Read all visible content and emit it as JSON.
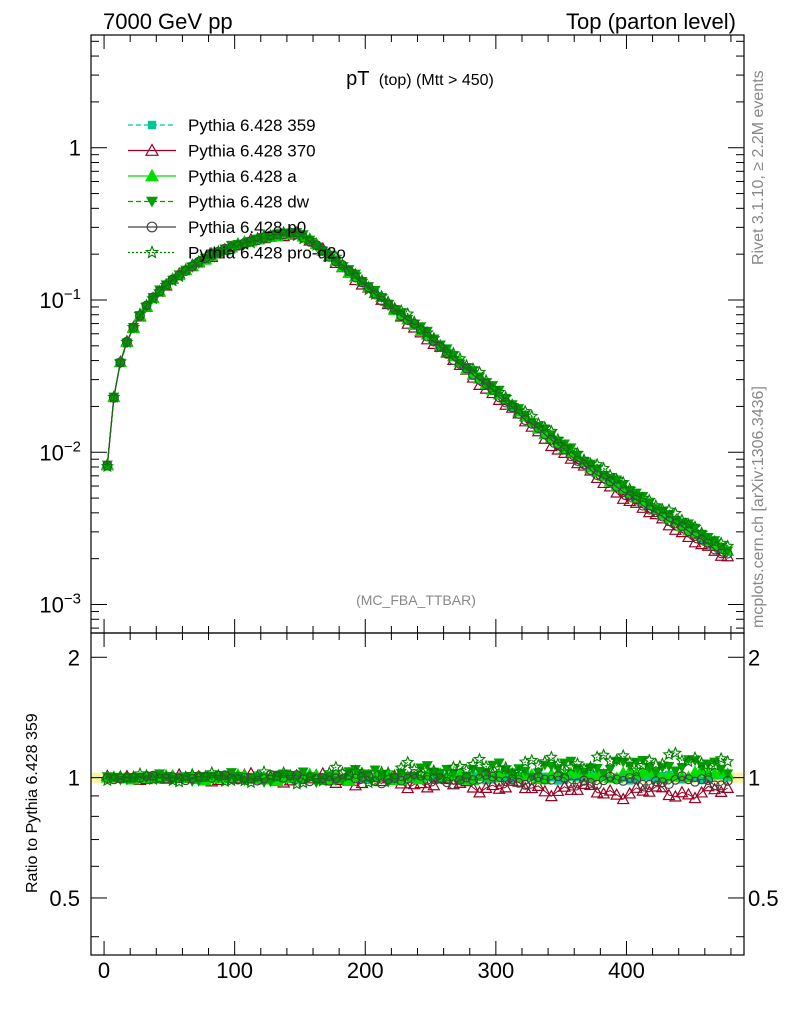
{
  "header": {
    "left": "7000 GeV pp",
    "right": "Top (parton level)"
  },
  "side_labels": {
    "rivet": "Rivet 3.1.10, ≥ 2.2M events",
    "mcplots": "mcplots.cern.ch [arXiv:1306.3436]"
  },
  "chart_data": {
    "type": "line",
    "title": "pT (top) (Mtt > 450)",
    "title_main": "pT",
    "title_sub": "(top) (Mtt > 450)",
    "analysis_tag": "(MC_FBA_TTBAR)",
    "xlim": [
      -10,
      490
    ],
    "xticks": [
      0,
      100,
      200,
      300,
      400
    ],
    "xtick_labels": [
      "0",
      "100",
      "200",
      "300",
      "400"
    ],
    "main_panel": {
      "yscale": "log",
      "ylim": [
        0.00065,
        5.5
      ],
      "yticks": [
        0.001,
        0.01,
        0.1,
        1
      ],
      "ytick_labels": [
        "10−3",
        "10−2",
        "10−1",
        "1"
      ],
      "ytick_base": "10",
      "ytick_exps": [
        "−3",
        "−2",
        "−1",
        ""
      ],
      "peak": {
        "x": 147,
        "y": 0.275
      },
      "rise_points": [
        [
          2.5,
          0.0082
        ],
        [
          7.5,
          0.023
        ],
        [
          12.5,
          0.039
        ],
        [
          17.5,
          0.053
        ],
        [
          22.5,
          0.066
        ],
        [
          27.5,
          0.079
        ],
        [
          32.5,
          0.091
        ],
        [
          37.5,
          0.103
        ],
        [
          42.5,
          0.114
        ],
        [
          47.5,
          0.125
        ],
        [
          52.5,
          0.136
        ],
        [
          57.5,
          0.146
        ],
        [
          62.5,
          0.157
        ],
        [
          67.5,
          0.167
        ],
        [
          72.5,
          0.177
        ],
        [
          77.5,
          0.187
        ],
        [
          82.5,
          0.196
        ],
        [
          87.5,
          0.205
        ],
        [
          92.5,
          0.214
        ],
        [
          97.5,
          0.222
        ],
        [
          102.5,
          0.23
        ],
        [
          107.5,
          0.237
        ],
        [
          112.5,
          0.244
        ],
        [
          117.5,
          0.251
        ],
        [
          122.5,
          0.257
        ],
        [
          127.5,
          0.262
        ],
        [
          132.5,
          0.267
        ],
        [
          137.5,
          0.27
        ],
        [
          142.5,
          0.273
        ],
        [
          147.5,
          0.274
        ]
      ],
      "decay_anchor": [
        [
          160,
          0.24
        ],
        [
          200,
          0.125
        ],
        [
          250,
          0.056
        ],
        [
          300,
          0.0245
        ],
        [
          350,
          0.0108
        ],
        [
          400,
          0.0054
        ],
        [
          475,
          0.0022
        ]
      ]
    },
    "ratio_panel": {
      "ylabel": "Ratio to Pythia 6.428 359",
      "ylim": [
        0.36,
        2.3
      ],
      "yticks": [
        0.5,
        1,
        2
      ],
      "ytick_labels": [
        "0.5",
        "1",
        "2"
      ]
    },
    "series": [
      {
        "name": "Pythia 6.428 359",
        "color": "#00c896",
        "marker": "square",
        "line": "dashed",
        "scale": 1.0,
        "ratio_var": 0.02
      },
      {
        "name": "Pythia 6.428 370",
        "color": "#990022",
        "marker": "triangle-open",
        "line": "solid",
        "scale": 0.92,
        "ratio_var": 0.04
      },
      {
        "name": "Pythia 6.428 a",
        "color": "#00e000",
        "marker": "triangle",
        "line": "solid",
        "scale": 1.02,
        "ratio_var": 0.03
      },
      {
        "name": "Pythia 6.428 dw",
        "color": "#00a000",
        "marker": "triangle-down",
        "line": "dashed",
        "scale": 1.07,
        "ratio_var": 0.05
      },
      {
        "name": "Pythia 6.428 p0",
        "color": "#444444",
        "marker": "circle-open",
        "line": "solid",
        "scale": 0.98,
        "ratio_var": 0.03
      },
      {
        "name": "Pythia 6.428 pro-q2o",
        "color": "#008000",
        "marker": "star-open",
        "line": "dotted",
        "scale": 1.1,
        "ratio_var": 0.06
      }
    ]
  }
}
